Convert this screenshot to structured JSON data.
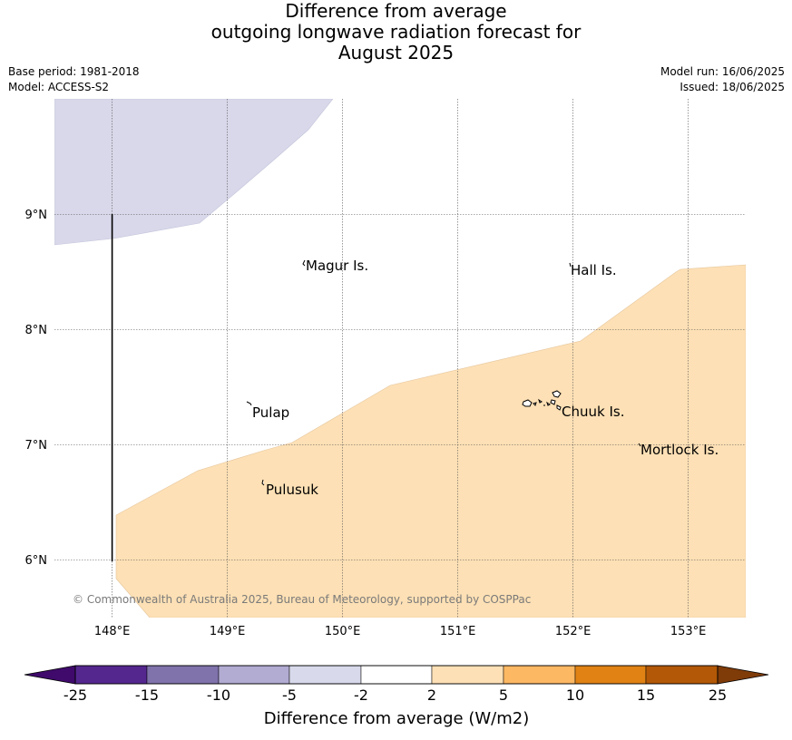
{
  "title": {
    "line1": "Difference from average",
    "line2": "outgoing longwave radiation forecast for",
    "line3": "August 2025"
  },
  "meta": {
    "base_period": "Base period: 1981-2018",
    "model": "Model: ACCESS-S2",
    "model_run": "Model run: 16/06/2025",
    "issued": "Issued: 18/06/2025"
  },
  "map": {
    "lat_labels": [
      "9°N",
      "8°N",
      "7°N",
      "6°N"
    ],
    "lon_labels": [
      "148°E",
      "149°E",
      "150°E",
      "151°E",
      "152°E",
      "153°E"
    ],
    "places": [
      {
        "name": "Magur Is.",
        "lon": 149.68,
        "lat": 8.56
      },
      {
        "name": "Hall Is.",
        "lon": 151.98,
        "lat": 8.52
      },
      {
        "name": "Pulap",
        "lon": 149.22,
        "lat": 7.28
      },
      {
        "name": "Chuuk Is.",
        "lon": 151.88,
        "lat": 7.29
      },
      {
        "name": "Mortlock Is.",
        "lon": 152.59,
        "lat": 6.96
      },
      {
        "name": "Pulusuk",
        "lon": 149.32,
        "lat": 6.62
      }
    ],
    "copyright": "© Commonwealth of Australia 2025, Bureau of Meteorology, supported by COSPPac",
    "regions": [
      {
        "category": "-5 to -2",
        "color": "#d8d8ea"
      },
      {
        "category": "2 to 5",
        "color": "#fde0b5"
      }
    ]
  },
  "colorbar": {
    "title": "Difference from average (W/m2)",
    "ticks": [
      "-25",
      "-15",
      "-10",
      "-5",
      "-2",
      "2",
      "5",
      "10",
      "15",
      "25"
    ],
    "colors": [
      "#3f0a6b",
      "#54278f",
      "#8073ac",
      "#b2abd2",
      "#d8daeb",
      "#ffffff",
      "#fee0b6",
      "#fdb863",
      "#e08214",
      "#b35806",
      "#7f3b08"
    ]
  }
}
